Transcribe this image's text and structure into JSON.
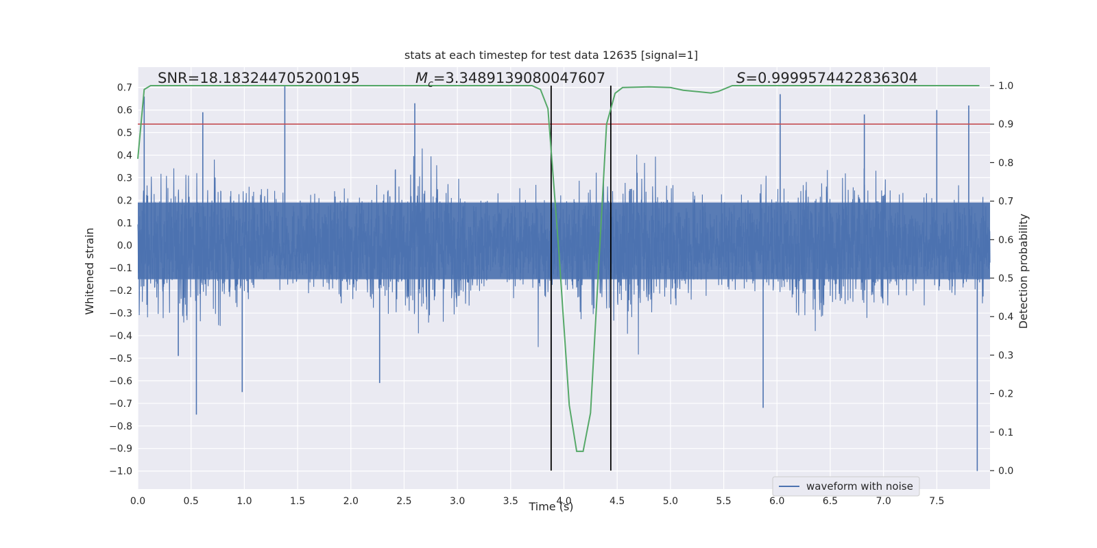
{
  "chart_data": {
    "type": "line",
    "title": "stats at each timestep for test data 12635 [signal=1]",
    "xlabel": "Time (s)",
    "ylabel": "Whitened strain",
    "y2label": "Detection probability",
    "xlim": [
      0.0,
      8.0
    ],
    "ylim": [
      -1.08,
      0.79
    ],
    "y2lim": [
      -0.048,
      1.048
    ],
    "x_ticks": [
      "0.0",
      "0.5",
      "1.0",
      "1.5",
      "2.0",
      "2.5",
      "3.0",
      "3.5",
      "4.0",
      "4.5",
      "5.0",
      "5.5",
      "6.0",
      "6.5",
      "7.0",
      "7.5"
    ],
    "x_tick_values": [
      0.0,
      0.5,
      1.0,
      1.5,
      2.0,
      2.5,
      3.0,
      3.5,
      4.0,
      4.5,
      5.0,
      5.5,
      6.0,
      6.5,
      7.0,
      7.5
    ],
    "y_ticks": [
      "0.7",
      "0.6",
      "0.5",
      "0.4",
      "0.3",
      "0.2",
      "0.1",
      "0.0",
      "−0.1",
      "−0.2",
      "−0.3",
      "−0.4",
      "−0.5",
      "−0.6",
      "−0.7",
      "−0.8",
      "−0.9",
      "−1.0"
    ],
    "y_tick_values": [
      0.7,
      0.6,
      0.5,
      0.4,
      0.3,
      0.2,
      0.1,
      0.0,
      -0.1,
      -0.2,
      -0.3,
      -0.4,
      -0.5,
      -0.6,
      -0.7,
      -0.8,
      -0.9,
      -1.0
    ],
    "y2_ticks": [
      "1.0",
      "0.9",
      "0.8",
      "0.7",
      "0.6",
      "0.5",
      "0.4",
      "0.3",
      "0.2",
      "0.1",
      "0.0"
    ],
    "y2_tick_values": [
      1.0,
      0.9,
      0.8,
      0.7,
      0.6,
      0.5,
      0.4,
      0.3,
      0.2,
      0.1,
      0.0
    ],
    "annotations": {
      "snr": "SNR=18.183244705200195",
      "mc_symbol": "M",
      "mc_sub": "c",
      "mc_value": "=3.3489139080047607",
      "s_symbol": "S",
      "s_value": "=0.9999574422836304"
    },
    "legend": {
      "label": "waveform with noise",
      "position": "lower-right"
    },
    "colors": {
      "waveform": "#4c72b0",
      "probability": "#55a868",
      "threshold": "#c44e52",
      "markers": "#000000",
      "background": "#eaeaf2",
      "grid": "#ffffff"
    },
    "series": [
      {
        "name": "waveform with noise",
        "kind": "noise",
        "x_range": [
          0.0,
          8.0
        ],
        "typical_amplitude": 0.25,
        "spikes": [
          {
            "x": 0.06,
            "y": 0.66
          },
          {
            "x": 0.38,
            "y": -0.49
          },
          {
            "x": 0.55,
            "y": -0.75
          },
          {
            "x": 0.61,
            "y": 0.59
          },
          {
            "x": 0.98,
            "y": -0.65
          },
          {
            "x": 1.38,
            "y": 0.71
          },
          {
            "x": 2.27,
            "y": -0.61
          },
          {
            "x": 2.6,
            "y": 0.63
          },
          {
            "x": 3.88,
            "y": -0.68
          },
          {
            "x": 5.87,
            "y": -0.72
          },
          {
            "x": 6.03,
            "y": 0.67
          },
          {
            "x": 6.82,
            "y": 0.58
          },
          {
            "x": 7.5,
            "y": 0.6
          },
          {
            "x": 7.8,
            "y": 0.62
          },
          {
            "x": 7.88,
            "y": -1.0
          }
        ]
      },
      {
        "name": "detection probability",
        "axis": "right",
        "x": [
          0.0,
          0.06,
          0.12,
          0.5,
          1.0,
          2.0,
          3.0,
          3.5,
          3.7,
          3.78,
          3.85,
          3.95,
          4.05,
          4.12,
          4.18,
          4.25,
          4.33,
          4.4,
          4.48,
          4.55,
          4.8,
          5.0,
          5.12,
          5.38,
          5.45,
          5.58,
          6.0,
          7.0,
          7.9
        ],
        "y": [
          0.81,
          0.99,
          1.0,
          1.0,
          1.0,
          1.0,
          1.0,
          1.0,
          1.0,
          0.99,
          0.94,
          0.58,
          0.17,
          0.05,
          0.05,
          0.15,
          0.55,
          0.9,
          0.98,
          0.995,
          0.997,
          0.995,
          0.988,
          0.981,
          0.985,
          1.0,
          1.0,
          1.0,
          1.0
        ]
      },
      {
        "name": "threshold",
        "axis": "right",
        "y": 0.9
      }
    ],
    "markers_x": [
      3.88,
      4.44
    ]
  }
}
